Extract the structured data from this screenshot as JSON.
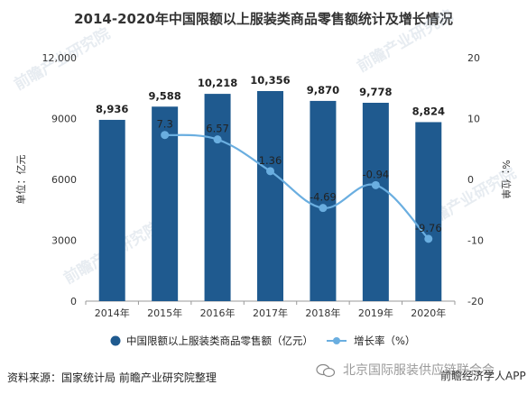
{
  "chart_data": {
    "type": "bar",
    "title": "2014-2020年中国限额以上服装类商品零售额统计及增长情况",
    "categories": [
      "2014年",
      "2015年",
      "2016年",
      "2017年",
      "2018年",
      "2019年",
      "2020年"
    ],
    "series": [
      {
        "name": "中国限额以上服装类商品零售额（亿元）",
        "type": "bar",
        "axis": "left",
        "values": [
          8936,
          9588,
          10218,
          10356,
          9870,
          9778,
          8824
        ],
        "labels": [
          "8,936",
          "9,588",
          "10,218",
          "10,356",
          "9,870",
          "9,778",
          "8,824"
        ]
      },
      {
        "name": "增长率（%）",
        "type": "line",
        "axis": "right",
        "values": [
          null,
          7.3,
          6.57,
          1.36,
          -4.69,
          -0.94,
          -9.76
        ],
        "labels": [
          "",
          "7.3",
          "6.57",
          "1.36",
          "-4.69",
          "-0.94",
          "-9.76"
        ]
      }
    ],
    "ylabel": "单位：亿元",
    "y2label": "%：位单",
    "ylim": [
      0,
      12000
    ],
    "yticks": [
      "0",
      "3000",
      "6000",
      "9000",
      "12,000"
    ],
    "yticks_values": [
      0,
      3000,
      6000,
      9000,
      12000
    ],
    "y2lim": [
      -20,
      20
    ],
    "y2ticks": [
      "-20",
      "-10",
      "0",
      "10",
      "20"
    ],
    "y2ticks_values": [
      -20,
      -10,
      0,
      10,
      20
    ],
    "grid": false,
    "legend_position": "bottom-center",
    "colors": {
      "bar": "#1f5a8f",
      "line": "#6aaee0"
    }
  },
  "source": "资料来源：国家统计局 前瞻产业研究院整理",
  "watermarks": {
    "small": "前瞻经济学人APP",
    "big": "北京国际服装供应链联合会",
    "chart": [
      "前瞻产业研究院",
      "前瞻产业研究院",
      "前瞻产业研究院"
    ]
  }
}
